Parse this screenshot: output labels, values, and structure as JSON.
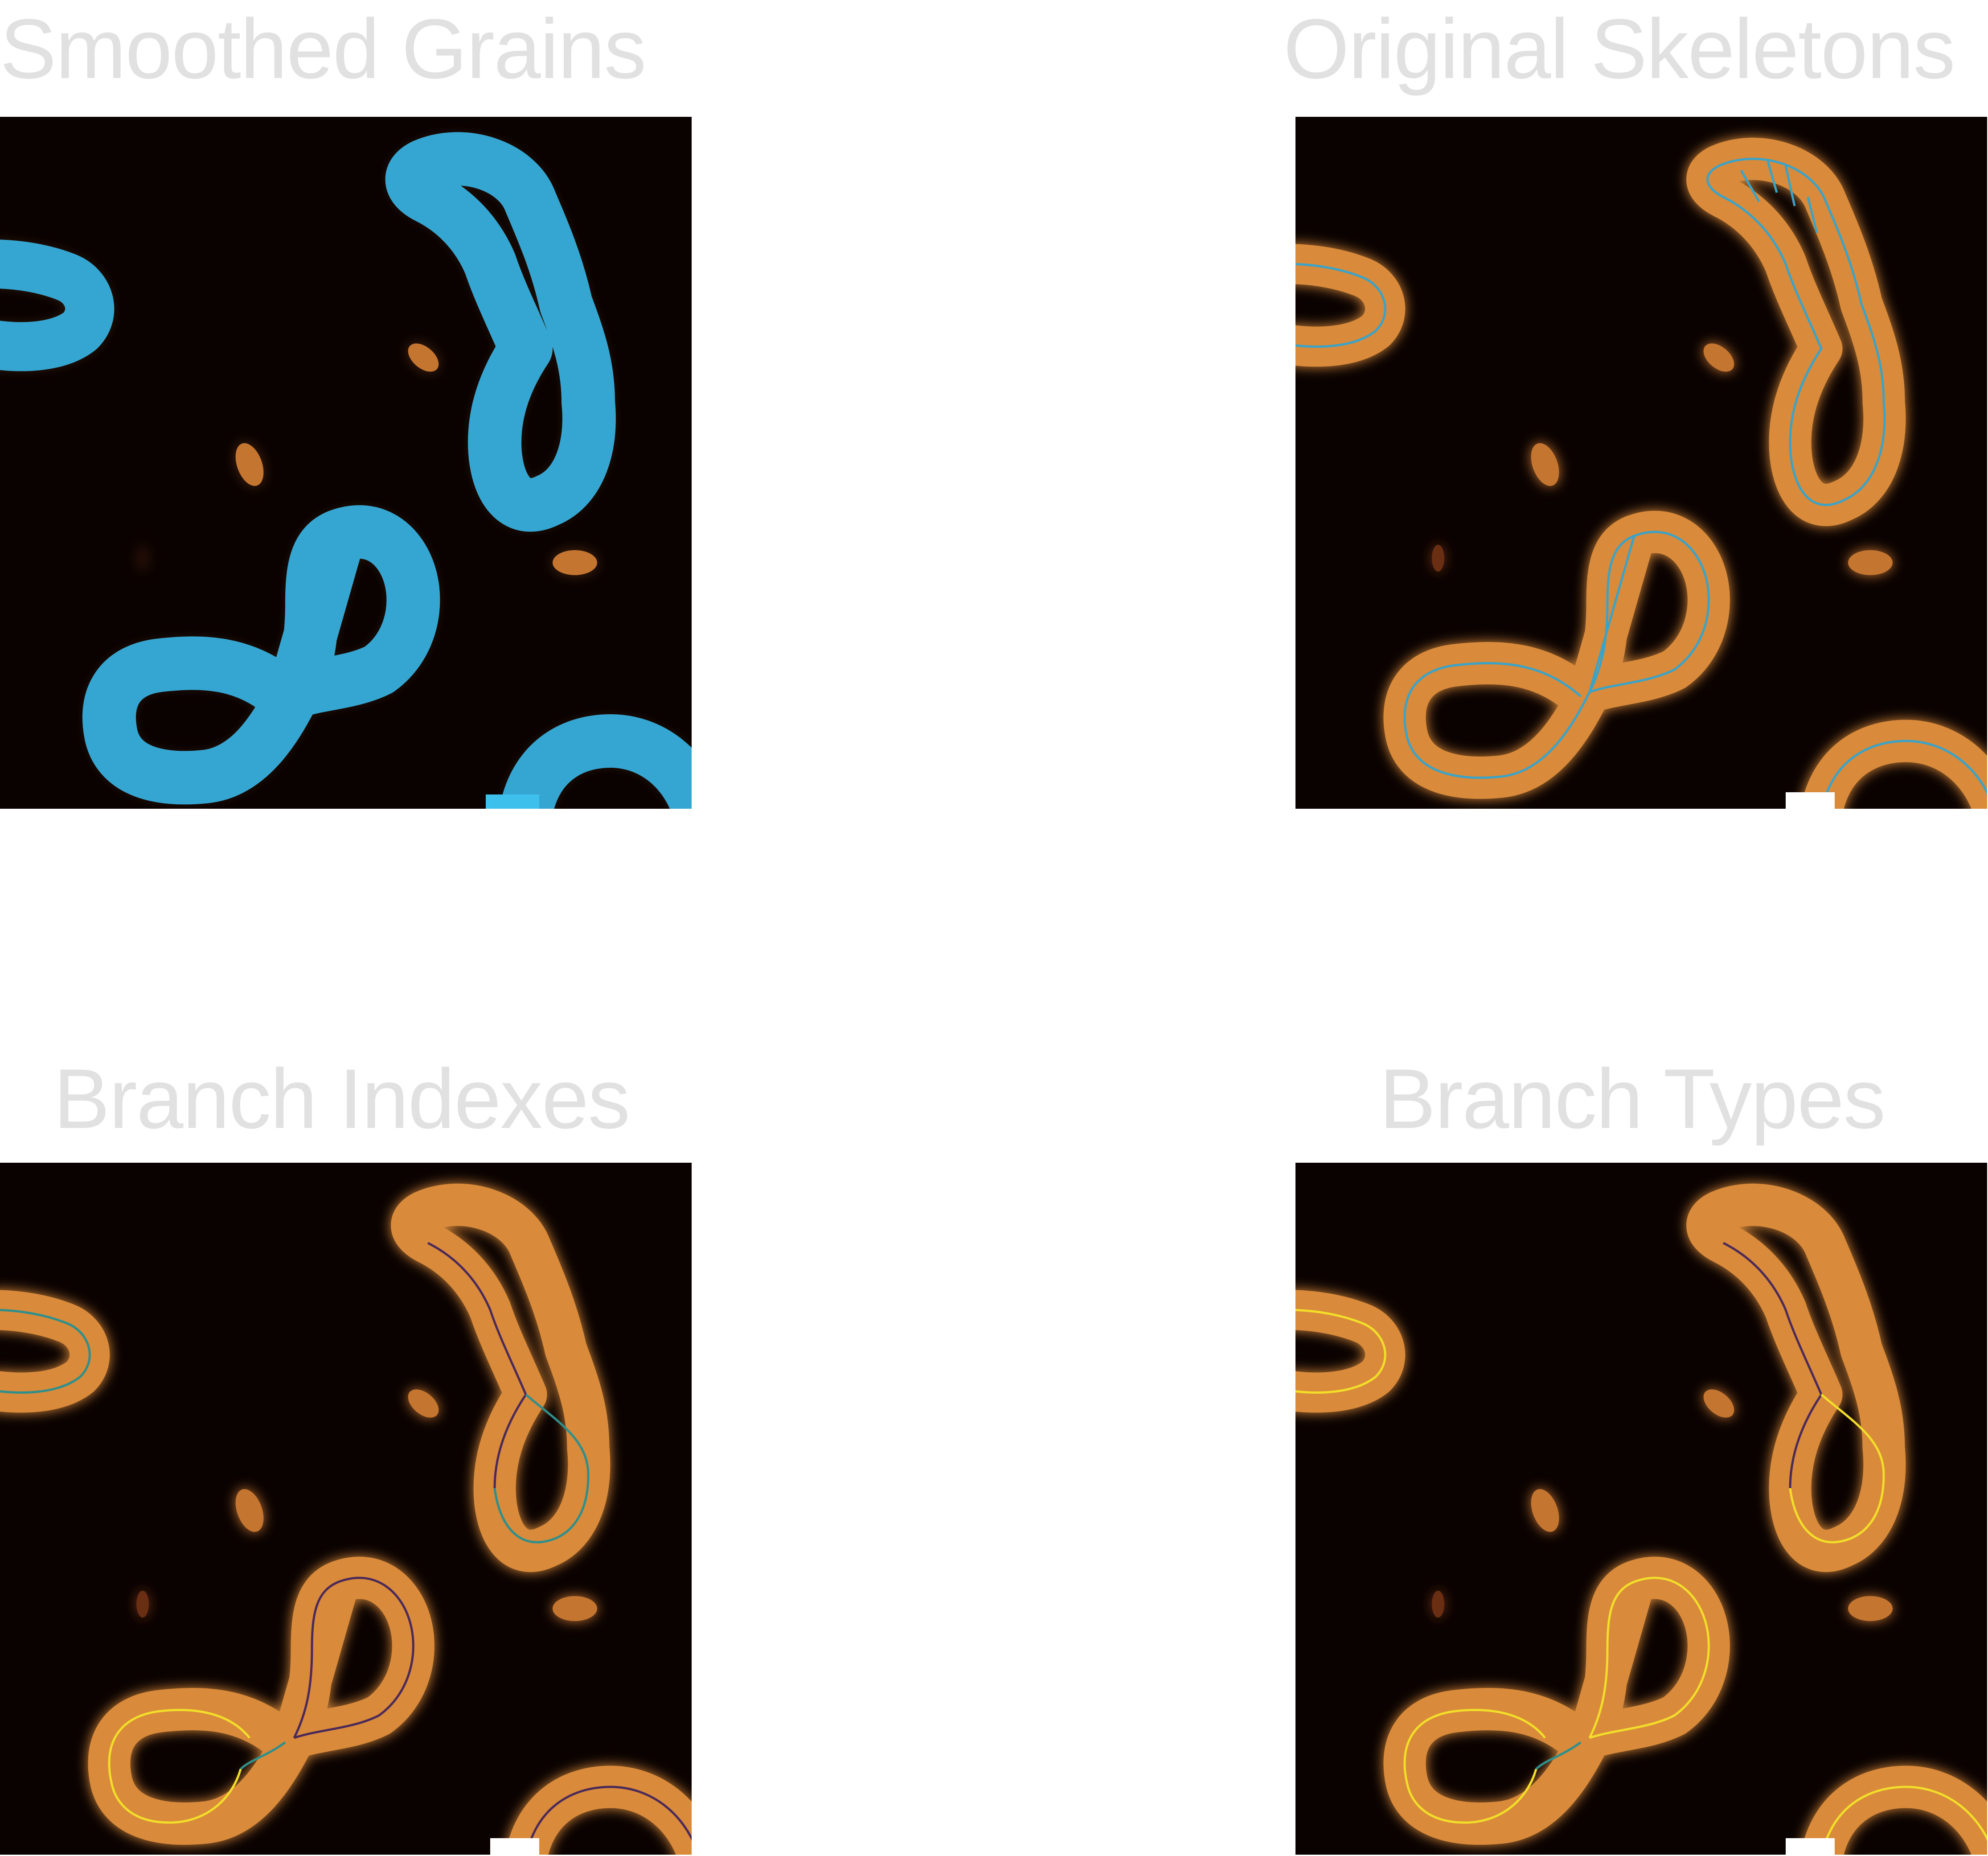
{
  "panels": {
    "smoothed_grains": {
      "title": "Smoothed Grains",
      "icon": "afm-image-with-blue-grain-masks"
    },
    "original_skeletons": {
      "title": "Original Skeletons",
      "icon": "afm-image-with-blue-skeleton-traces"
    },
    "branch_indexes": {
      "title": "Branch Indexes",
      "icon": "afm-image-with-colored-branch-index-traces"
    },
    "branch_types": {
      "title": "Branch Types",
      "icon": "afm-image-with-colored-branch-type-traces"
    }
  },
  "colors": {
    "background": "#0a0201",
    "grain_mask": "#35a6d2",
    "skeleton": "#3aa3c8",
    "branch_purple": "#4b2a59",
    "branch_teal": "#2e8f8c",
    "branch_yellow": "#f2de2a",
    "molecule_glow": "#d98a3a"
  }
}
